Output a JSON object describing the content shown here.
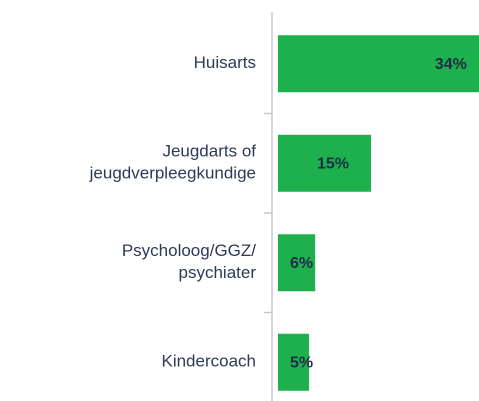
{
  "chart_data": {
    "type": "bar",
    "orientation": "horizontal",
    "categories": [
      "Huisarts",
      "Jeugdarts of\njeugdverpleegkundige",
      "Psycholoog/GGZ/\npsychiater",
      "Kindercoach"
    ],
    "values": [
      34,
      15,
      6,
      5
    ],
    "value_labels": [
      "34%",
      "15%",
      "6%",
      "5%"
    ],
    "color": "#1eb04c"
  }
}
